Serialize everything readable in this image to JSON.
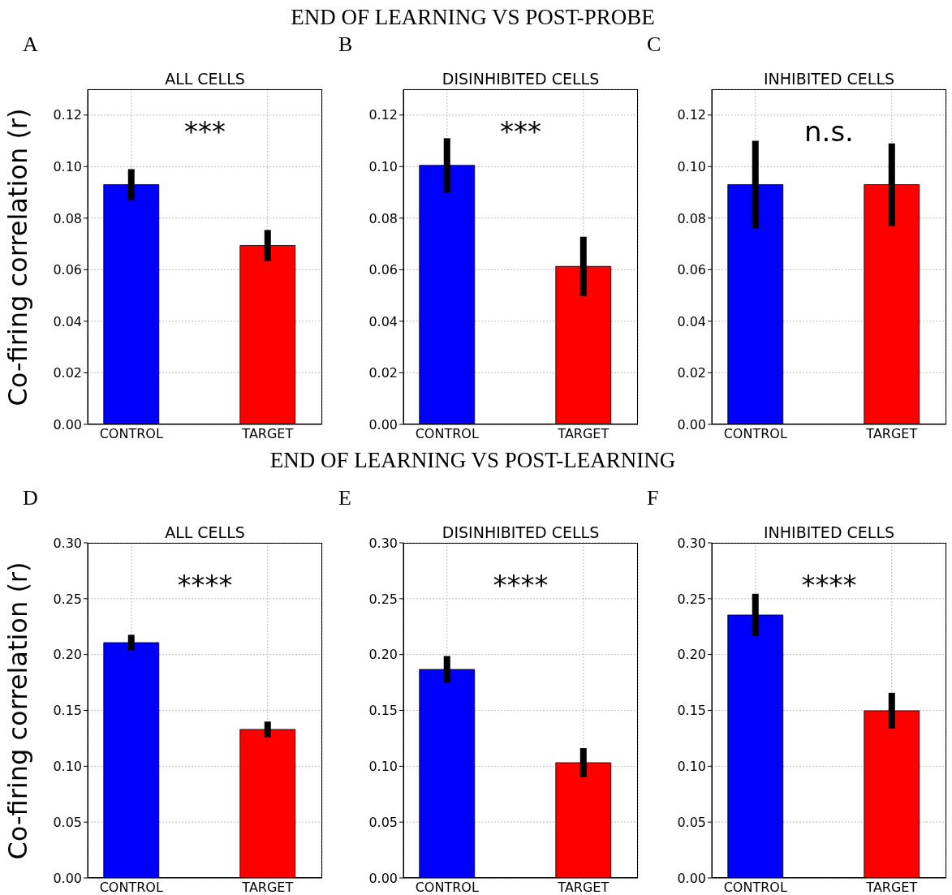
{
  "chart_data": [
    {
      "type": "bar",
      "title": "ALL CELLS",
      "ylabel": "Co-firing correlation (r)",
      "annotations": [
        "A",
        "***"
      ],
      "categories": [
        "CONTROL",
        "TARGET"
      ],
      "values": [
        0.093,
        0.0694
      ],
      "errors": [
        0.006,
        0.006
      ],
      "colors": [
        "#0000ff",
        "#ff0000"
      ],
      "ylim": [
        0,
        0.13
      ],
      "yticks": [
        {
          "value": 0,
          "label": "0.00"
        },
        {
          "value": 0.02,
          "label": "0.02"
        },
        {
          "value": 0.04,
          "label": "0.04"
        },
        {
          "value": 0.06,
          "label": "0.06"
        },
        {
          "value": 0.08,
          "label": "0.08"
        },
        {
          "value": 0.1,
          "label": "0.10"
        },
        {
          "value": 0.12,
          "label": "0.12"
        }
      ],
      "grid": true
    },
    {
      "type": "bar",
      "subtitle": "END OF LEARNING VS POST-PROBE",
      "title": "DISINHIBITED CELLS",
      "annotations": [
        "B",
        "***"
      ],
      "categories": [
        "CONTROL",
        "TARGET"
      ],
      "values": [
        0.1005,
        0.0613
      ],
      "errors": [
        0.0105,
        0.0115
      ],
      "colors": [
        "#0000ff",
        "#ff0000"
      ],
      "ylim": [
        0,
        0.13
      ],
      "yticks": [
        {
          "value": 0,
          "label": "0.00"
        },
        {
          "value": 0.02,
          "label": "0.02"
        },
        {
          "value": 0.04,
          "label": "0.04"
        },
        {
          "value": 0.06,
          "label": "0.06"
        },
        {
          "value": 0.08,
          "label": "0.08"
        },
        {
          "value": 0.1,
          "label": "0.10"
        },
        {
          "value": 0.12,
          "label": "0.12"
        }
      ],
      "grid": true
    },
    {
      "type": "bar",
      "title": "INHIBITED CELLS",
      "annotations": [
        "C",
        "n.s."
      ],
      "categories": [
        "CONTROL",
        "TARGET"
      ],
      "values": [
        0.093,
        0.093
      ],
      "errors": [
        0.017,
        0.016
      ],
      "colors": [
        "#0000ff",
        "#ff0000"
      ],
      "ylim": [
        0,
        0.13
      ],
      "yticks": [
        {
          "value": 0,
          "label": "0.00"
        },
        {
          "value": 0.02,
          "label": "0.02"
        },
        {
          "value": 0.04,
          "label": "0.04"
        },
        {
          "value": 0.06,
          "label": "0.06"
        },
        {
          "value": 0.08,
          "label": "0.08"
        },
        {
          "value": 0.1,
          "label": "0.10"
        },
        {
          "value": 0.12,
          "label": "0.12"
        }
      ],
      "grid": true
    },
    {
      "type": "bar",
      "title": "ALL CELLS",
      "ylabel": "Co-firing correlation (r)",
      "annotations": [
        "D",
        "****"
      ],
      "categories": [
        "CONTROL",
        "TARGET"
      ],
      "values": [
        0.2107,
        0.133
      ],
      "errors": [
        0.007,
        0.007
      ],
      "colors": [
        "#0000ff",
        "#ff0000"
      ],
      "ylim": [
        0,
        0.3
      ],
      "yticks": [
        {
          "value": 0,
          "label": "0.00"
        },
        {
          "value": 0.05,
          "label": "0.05"
        },
        {
          "value": 0.1,
          "label": "0.10"
        },
        {
          "value": 0.15,
          "label": "0.15"
        },
        {
          "value": 0.2,
          "label": "0.20"
        },
        {
          "value": 0.25,
          "label": "0.25"
        },
        {
          "value": 0.3,
          "label": "0.30"
        }
      ],
      "grid": true
    },
    {
      "type": "bar",
      "subtitle": "END OF LEARNING VS POST-LEARNING",
      "title": "DISINHIBITED CELLS",
      "annotations": [
        "E",
        "****"
      ],
      "categories": [
        "CONTROL",
        "TARGET"
      ],
      "values": [
        0.1867,
        0.1032
      ],
      "errors": [
        0.012,
        0.013
      ],
      "colors": [
        "#0000ff",
        "#ff0000"
      ],
      "ylim": [
        0,
        0.3
      ],
      "yticks": [
        {
          "value": 0,
          "label": "0.00"
        },
        {
          "value": 0.05,
          "label": "0.05"
        },
        {
          "value": 0.1,
          "label": "0.10"
        },
        {
          "value": 0.15,
          "label": "0.15"
        },
        {
          "value": 0.2,
          "label": "0.20"
        },
        {
          "value": 0.25,
          "label": "0.25"
        },
        {
          "value": 0.3,
          "label": "0.30"
        }
      ],
      "grid": true
    },
    {
      "type": "bar",
      "title": "INHIBITED CELLS",
      "annotations": [
        "F",
        "****"
      ],
      "categories": [
        "CONTROL",
        "TARGET"
      ],
      "values": [
        0.2354,
        0.1497
      ],
      "errors": [
        0.019,
        0.016
      ],
      "colors": [
        "#0000ff",
        "#ff0000"
      ],
      "ylim": [
        0,
        0.3
      ],
      "yticks": [
        {
          "value": 0,
          "label": "0.00"
        },
        {
          "value": 0.05,
          "label": "0.05"
        },
        {
          "value": 0.1,
          "label": "0.10"
        },
        {
          "value": 0.15,
          "label": "0.15"
        },
        {
          "value": 0.2,
          "label": "0.20"
        },
        {
          "value": 0.25,
          "label": "0.25"
        },
        {
          "value": 0.3,
          "label": "0.30"
        }
      ],
      "grid": true
    }
  ]
}
